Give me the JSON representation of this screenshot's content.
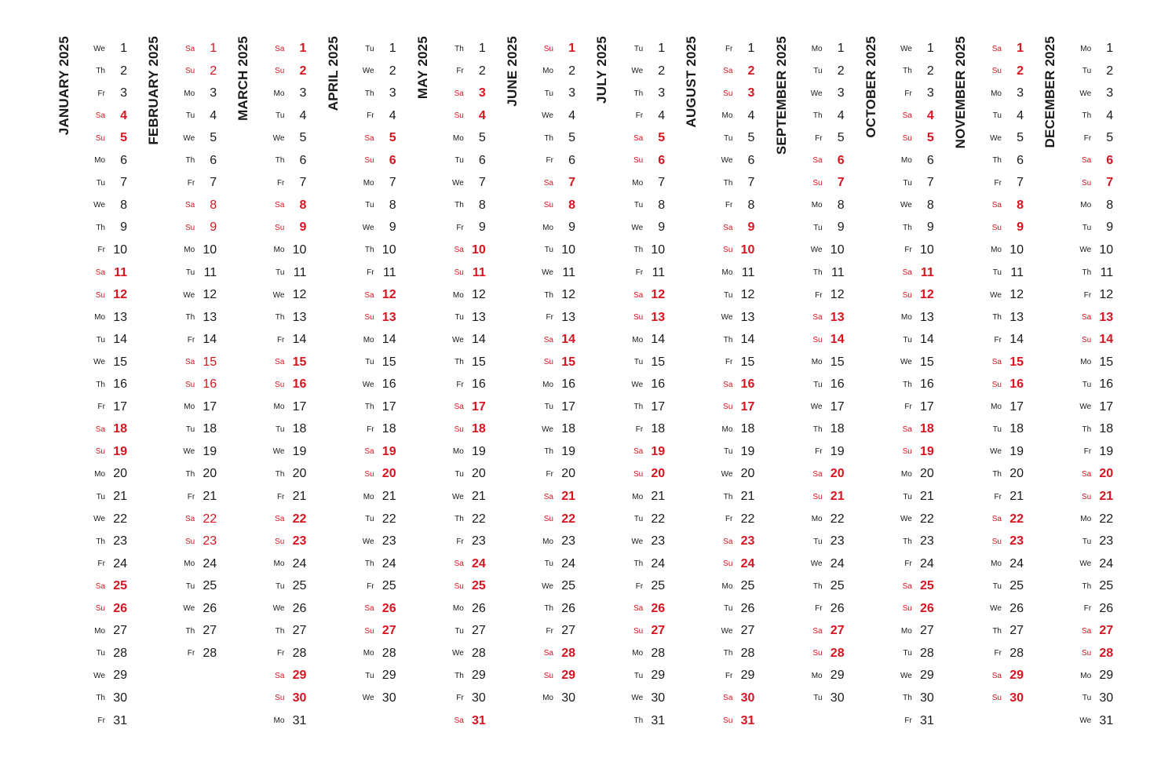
{
  "year": 2025,
  "accent_color": "#d7141f",
  "text_color": "#1a1a1a",
  "months": [
    {
      "name": "JANUARY 2025",
      "days": 31,
      "start_dow": "We"
    },
    {
      "name": "FEBRUARY 2025",
      "days": 28,
      "start_dow": "Sa"
    },
    {
      "name": "MARCH 2025",
      "days": 31,
      "start_dow": "Sa"
    },
    {
      "name": "APRIL 2025",
      "days": 30,
      "start_dow": "Tu"
    },
    {
      "name": "MAY 2025",
      "days": 31,
      "start_dow": "Th"
    },
    {
      "name": "JUNE 2025",
      "days": 30,
      "start_dow": "Su"
    },
    {
      "name": "JULY 2025",
      "days": 31,
      "start_dow": "Tu"
    },
    {
      "name": "AUGUST 2025",
      "days": 31,
      "start_dow": "Fr"
    },
    {
      "name": "SEPTEMBER 2025",
      "days": 30,
      "start_dow": "Mo"
    },
    {
      "name": "OCTOBER 2025",
      "days": 31,
      "start_dow": "We"
    },
    {
      "name": "NOVEMBER 2025",
      "days": 30,
      "start_dow": "Sa"
    },
    {
      "name": "DECEMBER 2025",
      "days": 31,
      "start_dow": "Mo"
    }
  ],
  "weekday_abbrevs": [
    "Mo",
    "Tu",
    "We",
    "Th",
    "Fr",
    "Sa",
    "Su"
  ],
  "weekend_days": [
    "Sa",
    "Su"
  ]
}
